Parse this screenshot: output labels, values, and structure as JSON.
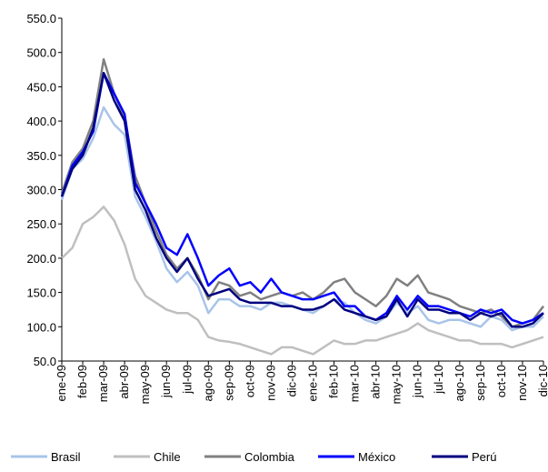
{
  "chart_data": {
    "type": "line",
    "categories": [
      "ene-09",
      null,
      "feb-09",
      null,
      "mar-09",
      null,
      "abr-09",
      null,
      "may-09",
      null,
      "jun-09",
      null,
      "jul-09",
      null,
      "ago-09",
      null,
      "sep-09",
      null,
      "oct-09",
      null,
      "nov-09",
      null,
      "dic-09",
      null,
      "ene-10",
      null,
      "feb-10",
      null,
      "mar-10",
      null,
      "abr-10",
      null,
      "may-10",
      null,
      "jun-10",
      null,
      "jul-10",
      null,
      "ago-10",
      null,
      "sep-10",
      null,
      "oct-10",
      null,
      "nov-10",
      null,
      "dic-10"
    ],
    "series": [
      {
        "name": "Brasil",
        "color": "#a9c4e8",
        "values": [
          285,
          330,
          345,
          375,
          420,
          395,
          380,
          290,
          260,
          225,
          185,
          165,
          180,
          160,
          120,
          140,
          140,
          130,
          130,
          125,
          135,
          135,
          130,
          125,
          120,
          130,
          140,
          135,
          120,
          110,
          105,
          115,
          135,
          120,
          130,
          110,
          105,
          110,
          110,
          105,
          100,
          115,
          110,
          95,
          100,
          100,
          115
        ]
      },
      {
        "name": "Chile",
        "color": "#bfbfbf",
        "values": [
          200,
          215,
          250,
          260,
          275,
          255,
          220,
          170,
          145,
          135,
          125,
          120,
          120,
          110,
          85,
          80,
          78,
          75,
          70,
          65,
          60,
          70,
          70,
          65,
          60,
          70,
          80,
          75,
          75,
          80,
          80,
          85,
          90,
          95,
          105,
          95,
          90,
          85,
          80,
          80,
          75,
          75,
          75,
          70,
          75,
          80,
          85
        ]
      },
      {
        "name": "Colombia",
        "color": "#808080",
        "values": [
          295,
          340,
          360,
          400,
          490,
          440,
          405,
          320,
          280,
          240,
          205,
          185,
          200,
          175,
          140,
          165,
          160,
          145,
          150,
          140,
          145,
          150,
          145,
          150,
          140,
          150,
          165,
          170,
          150,
          140,
          130,
          145,
          170,
          160,
          175,
          150,
          145,
          140,
          130,
          125,
          120,
          125,
          115,
          100,
          105,
          110,
          130
        ]
      },
      {
        "name": "México",
        "color": "#0000ff",
        "values": [
          290,
          335,
          355,
          385,
          470,
          440,
          410,
          310,
          280,
          250,
          215,
          205,
          235,
          200,
          160,
          175,
          185,
          160,
          165,
          150,
          170,
          150,
          145,
          140,
          140,
          145,
          150,
          130,
          130,
          115,
          110,
          120,
          145,
          125,
          145,
          130,
          130,
          125,
          120,
          115,
          125,
          120,
          125,
          110,
          105,
          110,
          120
        ]
      },
      {
        "name": "Perú",
        "color": "#000080",
        "values": [
          290,
          330,
          350,
          390,
          470,
          430,
          400,
          300,
          270,
          230,
          200,
          180,
          200,
          170,
          145,
          150,
          155,
          140,
          135,
          135,
          135,
          130,
          130,
          125,
          125,
          130,
          140,
          125,
          120,
          115,
          110,
          115,
          140,
          115,
          140,
          125,
          125,
          120,
          120,
          110,
          120,
          115,
          120,
          100,
          100,
          105,
          120
        ]
      }
    ],
    "ylim": [
      50,
      550
    ],
    "yticks": [
      {
        "value": 50,
        "label": "50.0"
      },
      {
        "value": 100,
        "label": "100.0"
      },
      {
        "value": 150,
        "label": "150.0"
      },
      {
        "value": 200,
        "label": "200.0"
      },
      {
        "value": 250,
        "label": "250.0"
      },
      {
        "value": 300,
        "label": "300.0"
      },
      {
        "value": 350,
        "label": "350.0"
      },
      {
        "value": 400,
        "label": "400.0"
      },
      {
        "value": 450,
        "label": "450.0"
      },
      {
        "value": 500,
        "label": "500.0"
      },
      {
        "value": 550,
        "label": "550.0"
      }
    ],
    "legend": "bottom"
  }
}
